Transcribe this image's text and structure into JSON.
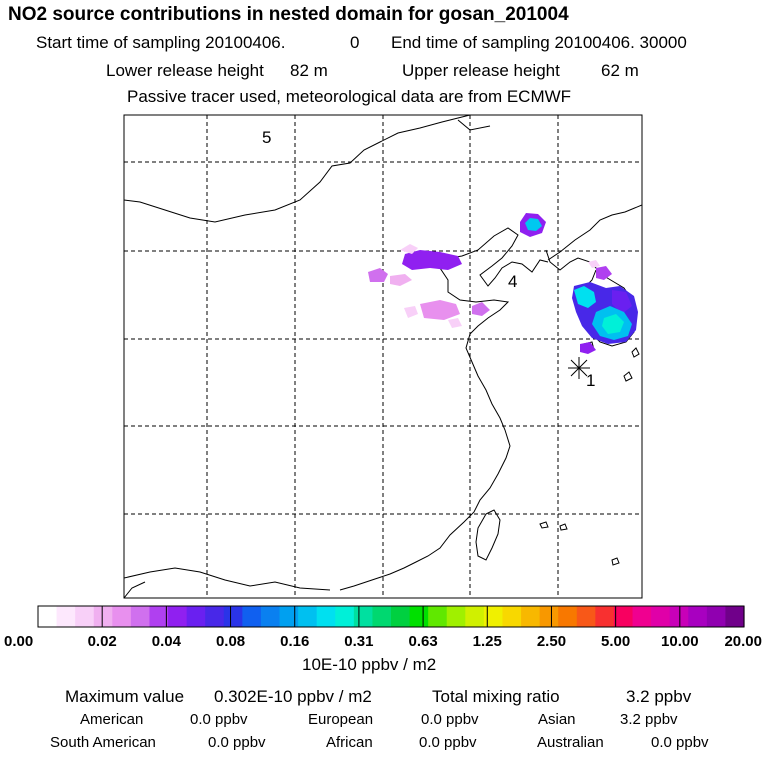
{
  "header": {
    "title": "NO2 source contributions in nested domain for gosan_201004",
    "start_label": "Start time of sampling 20100406.",
    "start_hour": "0",
    "end_label": "End time of sampling 20100406. 30000",
    "lower_label": "Lower release height",
    "lower_value": "82 m",
    "upper_label": "Upper release height",
    "upper_value": "62 m",
    "note": "Passive tracer used, meteorological data are from ECMWF"
  },
  "map": {
    "region_labels": [
      "5",
      "4",
      "1"
    ],
    "receptor_marker": "gosan-receptor"
  },
  "colorbar": {
    "unit": "10E-10 ppbv / m2",
    "ticks": [
      "0.00",
      "0.02",
      "0.04",
      "0.08",
      "0.16",
      "0.31",
      "0.63",
      "1.25",
      "2.50",
      "5.00",
      "10.00",
      "20.00"
    ],
    "colors": [
      "#ffffff",
      "#fde8fd",
      "#f8d0f8",
      "#f0b0f0",
      "#e890ee",
      "#d070ee",
      "#b040f0",
      "#9020f0",
      "#6a20f0",
      "#4828e8",
      "#2a34e8",
      "#1060f0",
      "#0a80f0",
      "#00a0f0",
      "#00c0f0",
      "#00e0f0",
      "#00f0d8",
      "#00e0a0",
      "#00d870",
      "#00d040",
      "#00e000",
      "#60e800",
      "#a0f000",
      "#d0f000",
      "#f0f000",
      "#f8d800",
      "#f8b800",
      "#f89800",
      "#f87800",
      "#f85818",
      "#f83030",
      "#f80060",
      "#f00090",
      "#e000a8",
      "#c800b8",
      "#a800c0",
      "#9000b0",
      "#70008a"
    ]
  },
  "footer": {
    "max_label": "Maximum value",
    "max_value": "0.302E-10 ppbv / m2",
    "total_label": "Total mixing ratio",
    "total_value": "3.2 ppbv",
    "american_label": "American",
    "american_value": "0.0 ppbv",
    "european_label": "European",
    "european_value": "0.0 ppbv",
    "asian_label": "Asian",
    "asian_value": "3.2 ppbv",
    "south_american_label": "South American",
    "south_american_value": "0.0 ppbv",
    "african_label": "African",
    "african_value": "0.0 ppbv",
    "australian_label": "Australian",
    "australian_value": "0.0 ppbv"
  }
}
